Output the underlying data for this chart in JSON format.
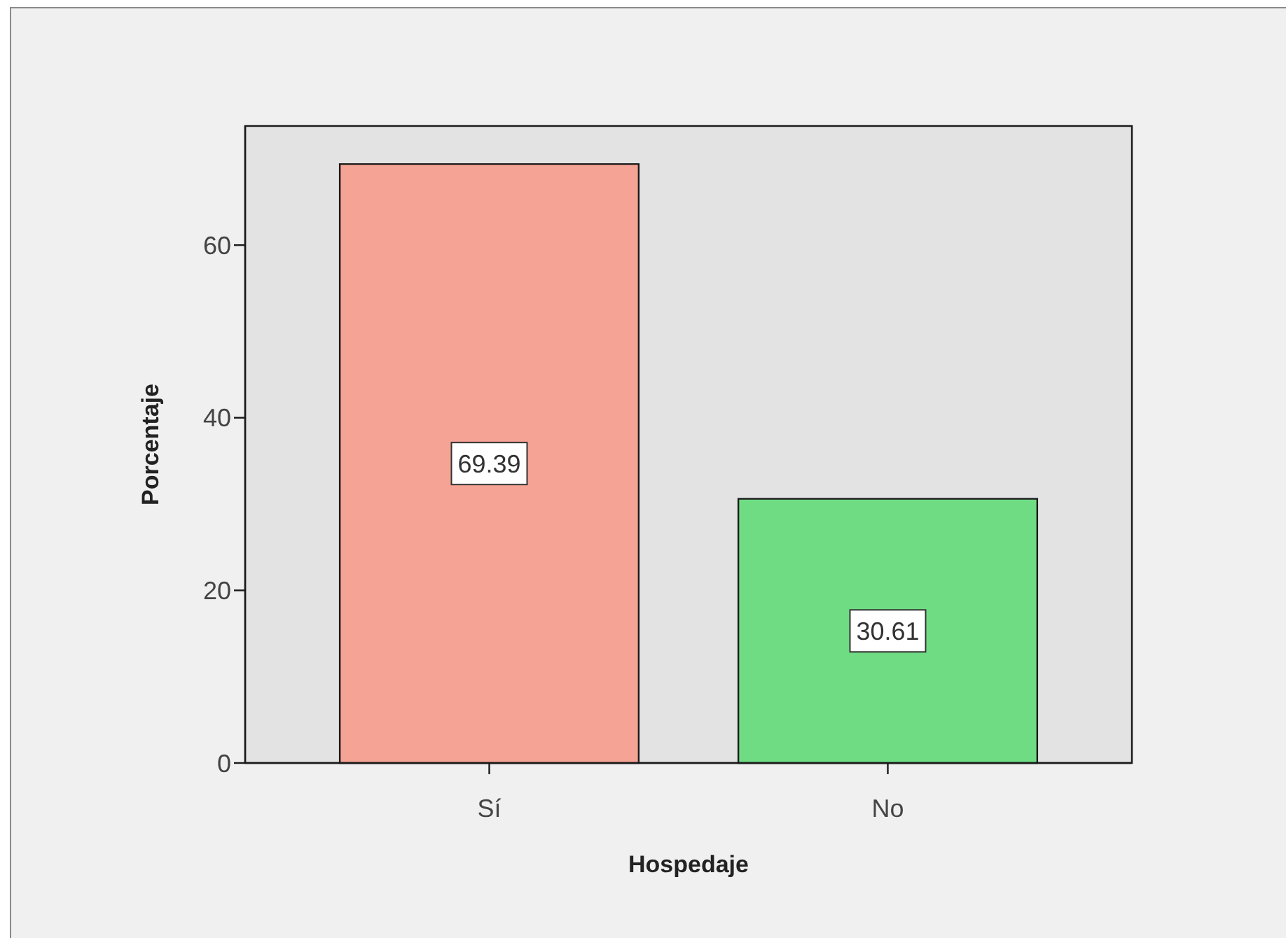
{
  "chart_data": {
    "type": "bar",
    "xlabel": "Hospedaje",
    "ylabel": "Porcentaje",
    "categories": [
      "Sí",
      "No"
    ],
    "values": [
      69.39,
      30.61
    ],
    "colors": [
      "#f5a394",
      "#6fdc84"
    ],
    "ylim": [
      0,
      73.8
    ],
    "yticks": [
      0,
      20,
      40,
      60
    ],
    "data_labels": true
  }
}
